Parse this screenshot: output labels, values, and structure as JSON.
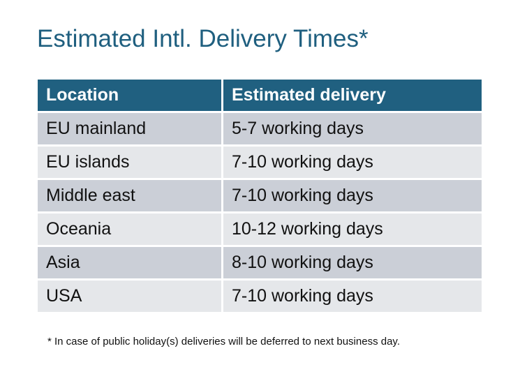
{
  "title": "Estimated Intl. Delivery Times*",
  "table": {
    "headers": [
      "Location",
      "Estimated delivery"
    ],
    "rows": [
      [
        "EU mainland",
        "5-7 working days"
      ],
      [
        "EU islands",
        "7-10 working days"
      ],
      [
        "Middle east",
        "7-10 working days"
      ],
      [
        "Oceania",
        "10-12 working days"
      ],
      [
        "Asia",
        "8-10 working days"
      ],
      [
        "USA",
        "7-10 working days"
      ]
    ]
  },
  "footnote": "* In case of public holiday(s) deliveries will be deferred to next business day.",
  "colors": {
    "title": "#1f5f7f",
    "header_bg": "#206080",
    "row_odd": "#cbcfd7",
    "row_even": "#e5e7ea"
  }
}
